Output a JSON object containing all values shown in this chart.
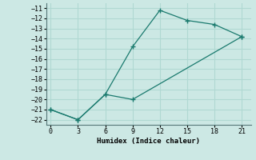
{
  "upper_x": [
    0,
    3,
    6,
    9,
    12,
    15,
    18,
    21
  ],
  "upper_y": [
    -21,
    -22,
    -19.5,
    -14.8,
    -11.2,
    -12.2,
    -12.6,
    -13.8
  ],
  "lower_x": [
    0,
    3,
    6,
    9,
    21
  ],
  "lower_y": [
    -21,
    -22,
    -19.5,
    -20,
    -13.8
  ],
  "xlabel": "Humidex (Indice chaleur)",
  "xlim": [
    -0.5,
    22
  ],
  "ylim": [
    -22.5,
    -10.5
  ],
  "xticks": [
    0,
    3,
    6,
    9,
    12,
    15,
    18,
    21
  ],
  "yticks": [
    -11,
    -12,
    -13,
    -14,
    -15,
    -16,
    -17,
    -18,
    -19,
    -20,
    -21,
    -22
  ],
  "line_color": "#1a7a6e",
  "bg_color": "#cce8e4",
  "grid_color": "#b0d8d2"
}
